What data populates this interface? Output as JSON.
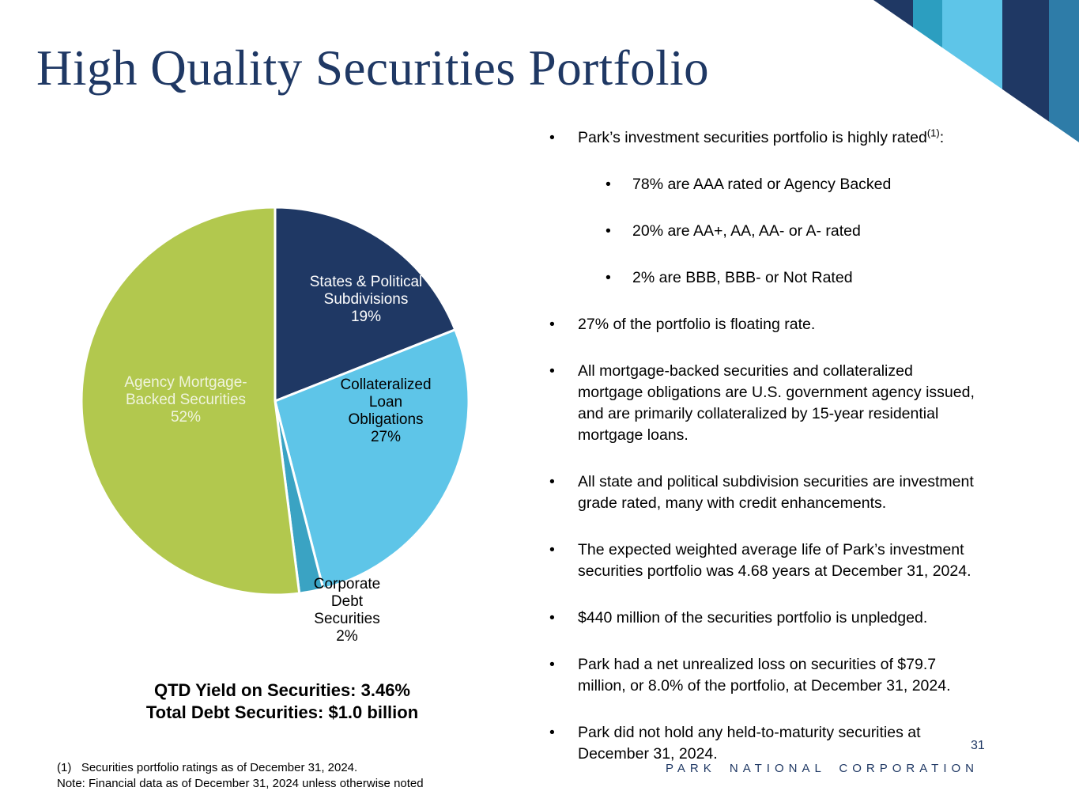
{
  "title": "High Quality Securities Portfolio",
  "colors": {
    "navy": "#1F3864",
    "teal": "#2C9EC0",
    "light_blue": "#5EC5E8",
    "steel_blue": "#2E7CA8",
    "green": "#B2C84E",
    "text_black": "#000000"
  },
  "decor": {
    "stripe_colors": [
      "#1F3864",
      "#2C9EC0",
      "#5EC5E8",
      "#1F3864",
      "#2E7CA8"
    ]
  },
  "chart_data": {
    "type": "pie",
    "title": "",
    "direction": "clockwise",
    "start_angle_deg": 0,
    "legend": "none",
    "slices": [
      {
        "name": "States & Political Subdivisions",
        "value": 19,
        "color": "#1F3864",
        "label_display": "States & Political\nSubdivisions\n19%",
        "label_color": "#FFFFFF"
      },
      {
        "name": "Collateralized Loan Obligations",
        "value": 27,
        "color": "#5EC5E8",
        "label_display": "Collateralized\nLoan\nObligations\n27%",
        "label_color": "#000000"
      },
      {
        "name": "Corporate Debt Securities",
        "value": 2,
        "color": "#3AA3C3",
        "label_display": "Corporate\nDebt\nSecurities\n2%",
        "label_color": "#000000"
      },
      {
        "name": "Agency Mortgage-Backed Securities",
        "value": 52,
        "color": "#B2C84E",
        "label_display": "Agency Mortgage-\nBacked Securities\n52%",
        "label_color": "#F0F4DE"
      }
    ]
  },
  "stats": {
    "line1": "QTD Yield on Securities: 3.46%",
    "line2": "Total Debt Securities: $1.0 billion"
  },
  "bullets": [
    {
      "level": 1,
      "pre": "Park’s investment securities portfolio is highly rated",
      "sup": "(1)",
      "post": ":"
    },
    {
      "level": 2,
      "text": "78% are AAA rated or Agency Backed"
    },
    {
      "level": 2,
      "text": "20% are AA+, AA, AA- or A- rated"
    },
    {
      "level": 2,
      "text": "2% are BBB, BBB- or Not Rated"
    },
    {
      "level": 1,
      "text": "27% of the portfolio is floating rate."
    },
    {
      "level": 1,
      "text": "All mortgage-backed securities and collateralized\nmortgage obligations are U.S. government agency issued,\nand are primarily collateralized by 15-year residential\nmortgage loans."
    },
    {
      "level": 1,
      "text": "All state and political subdivision securities are investment\ngrade rated, many with credit enhancements."
    },
    {
      "level": 1,
      "text": "The expected weighted average life of Park’s investment\nsecurities portfolio was 4.68 years at December 31, 2024."
    },
    {
      "level": 1,
      "text": "$440 million of the securities portfolio is unpledged."
    },
    {
      "level": 1,
      "text": "Park had a net unrealized loss on securities of $79.7\nmillion, or 8.0% of the portfolio, at December 31, 2024."
    },
    {
      "level": 1,
      "text": "Park did not hold any held-to-maturity securities at\nDecember 31, 2024."
    }
  ],
  "footnotes": {
    "line1": "(1)   Securities portfolio ratings as of December 31, 2024.",
    "line2": "Note: Financial data as of December 31, 2024 unless otherwise noted"
  },
  "footer": {
    "company": "PARK NATIONAL CORPORATION",
    "page_number": "31"
  }
}
